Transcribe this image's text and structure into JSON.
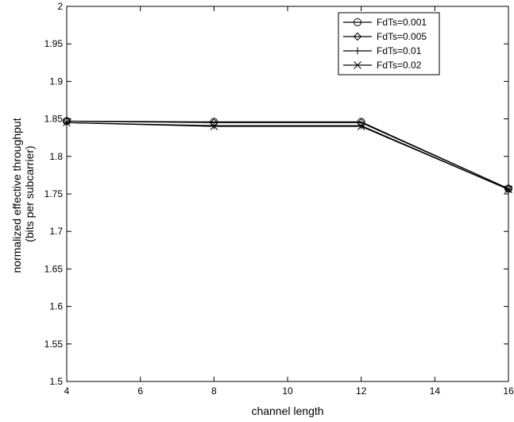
{
  "chart_data": {
    "type": "line",
    "title": "",
    "xlabel": "channel length",
    "ylabel_lines": [
      "normalized effective throughput",
      "(bits per subcarrier)"
    ],
    "xlim": [
      4,
      16
    ],
    "ylim": [
      1.5,
      2
    ],
    "x_ticks": [
      4,
      6,
      8,
      10,
      12,
      14,
      16
    ],
    "y_ticks": [
      "1.5",
      "1.55",
      "1.6",
      "1.65",
      "1.7",
      "1.75",
      "1.8",
      "1.85",
      "1.9",
      "1.95",
      "2"
    ],
    "grid": false,
    "legend_position": "top-right",
    "x": [
      4,
      8,
      12,
      16
    ],
    "series": [
      {
        "name": "FdTs=0.001",
        "marker": "circle",
        "values": [
          1.847,
          1.846,
          1.846,
          1.757
        ]
      },
      {
        "name": "FdTs=0.005",
        "marker": "diamond",
        "values": [
          1.847,
          1.845,
          1.845,
          1.757
        ]
      },
      {
        "name": "FdTs=0.01",
        "marker": "plus",
        "values": [
          1.845,
          1.841,
          1.841,
          1.756
        ]
      },
      {
        "name": "FdTs=0.02",
        "marker": "x",
        "values": [
          1.845,
          1.84,
          1.84,
          1.756
        ]
      }
    ],
    "line_color": "#000000"
  }
}
